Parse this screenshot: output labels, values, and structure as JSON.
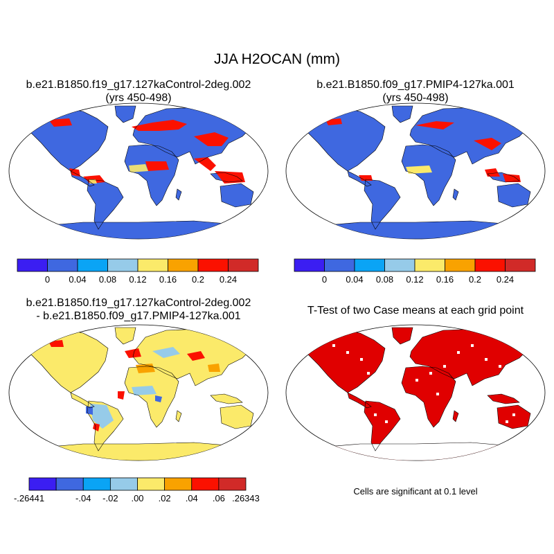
{
  "title": "JJA H2OCAN (mm)",
  "panels": [
    {
      "line1": "b.e21.B1850.f19_g17.127kaControl-2deg.002",
      "line2": "(yrs 450-498)"
    },
    {
      "line1": "b.e21.B1850.f09_g17.PMIP4-127ka.001",
      "line2": "(yrs 450-498)"
    },
    {
      "line1": "b.e21.B1850.f19_g17.127kaControl-2deg.002",
      "line2": "- b.e21.B1850.f09_g17.PMIP4-127ka.001"
    },
    {
      "line1": "T-Test of two Case means at each grid point",
      "line2": ""
    }
  ],
  "colorbar_abs": {
    "colors": [
      "#3b1ef2",
      "#3f68e0",
      "#0aa4f5",
      "#96cbe9",
      "#fbea6a",
      "#f9a200",
      "#fb1100",
      "#d12a28"
    ],
    "labels": [
      "0",
      "0.04",
      "0.08",
      "0.12",
      "0.16",
      "0.2",
      "0.24"
    ]
  },
  "colorbar_diff": {
    "colors": [
      "#3b1ef2",
      "#3f68e0",
      "#0aa4f5",
      "#96cbe9",
      "#fbea6a",
      "#f9a200",
      "#fb1100",
      "#d12a28"
    ],
    "labels": [
      "-.26441",
      "-.04",
      "-.02",
      ".00",
      ".02",
      ".04",
      ".06",
      ".26343"
    ]
  },
  "significance_note": "Cells are significant at 0.1 level",
  "colors": {
    "land_base": "#3f68e0",
    "high": "#fb1100",
    "diff_base": "#fbea6a",
    "sig": "#e00000"
  }
}
